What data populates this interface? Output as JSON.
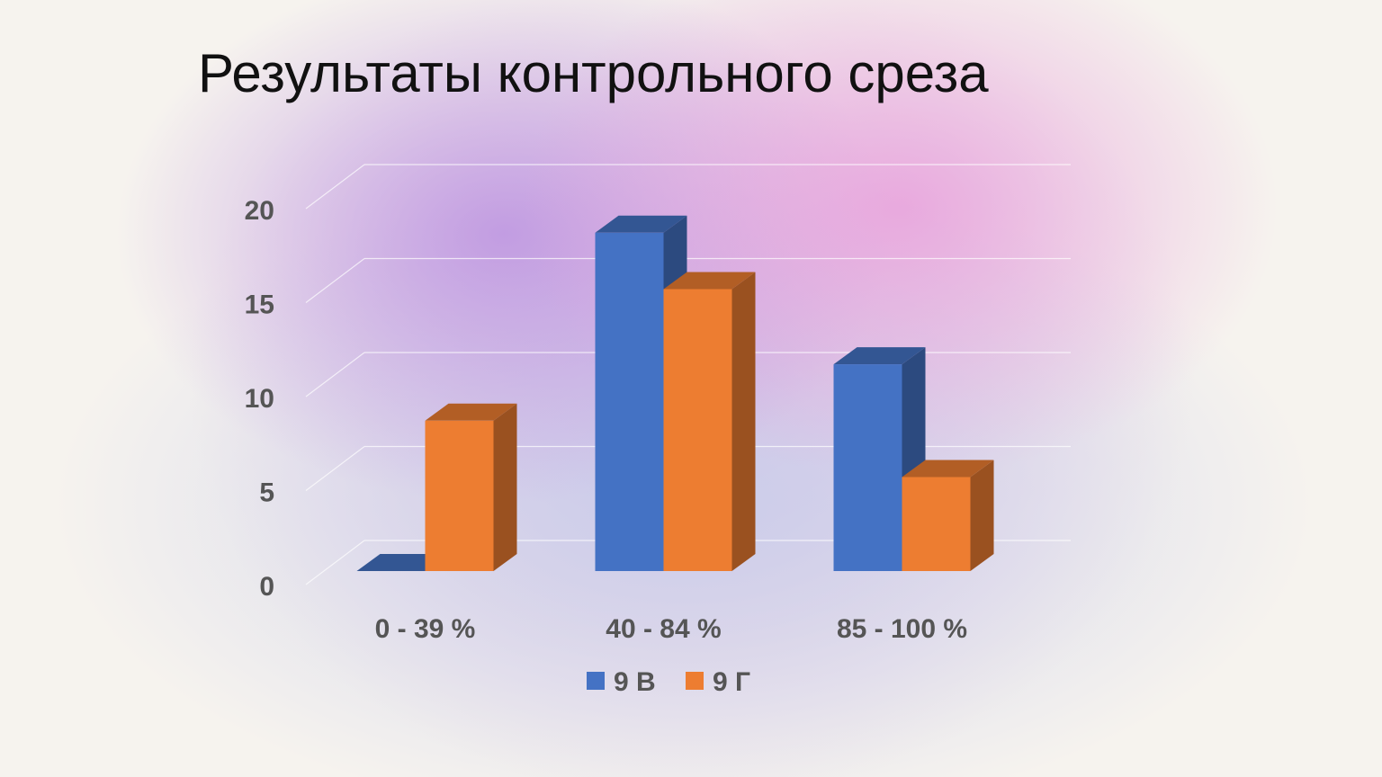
{
  "chart_data": {
    "type": "bar3d",
    "title": "Результаты контрольного среза",
    "categories": [
      "0 - 39 %",
      "40 - 84 %",
      "85 - 100 %"
    ],
    "series": [
      {
        "name": "9 В",
        "color": "#4472c4",
        "values": [
          0,
          18,
          11
        ]
      },
      {
        "name": "9 Г",
        "color": "#ed7d31",
        "values": [
          8,
          15,
          5
        ]
      }
    ],
    "ylim": [
      0,
      20
    ],
    "yticks": [
      0,
      5,
      10,
      15,
      20
    ],
    "grid": true,
    "legend": "bottom"
  }
}
